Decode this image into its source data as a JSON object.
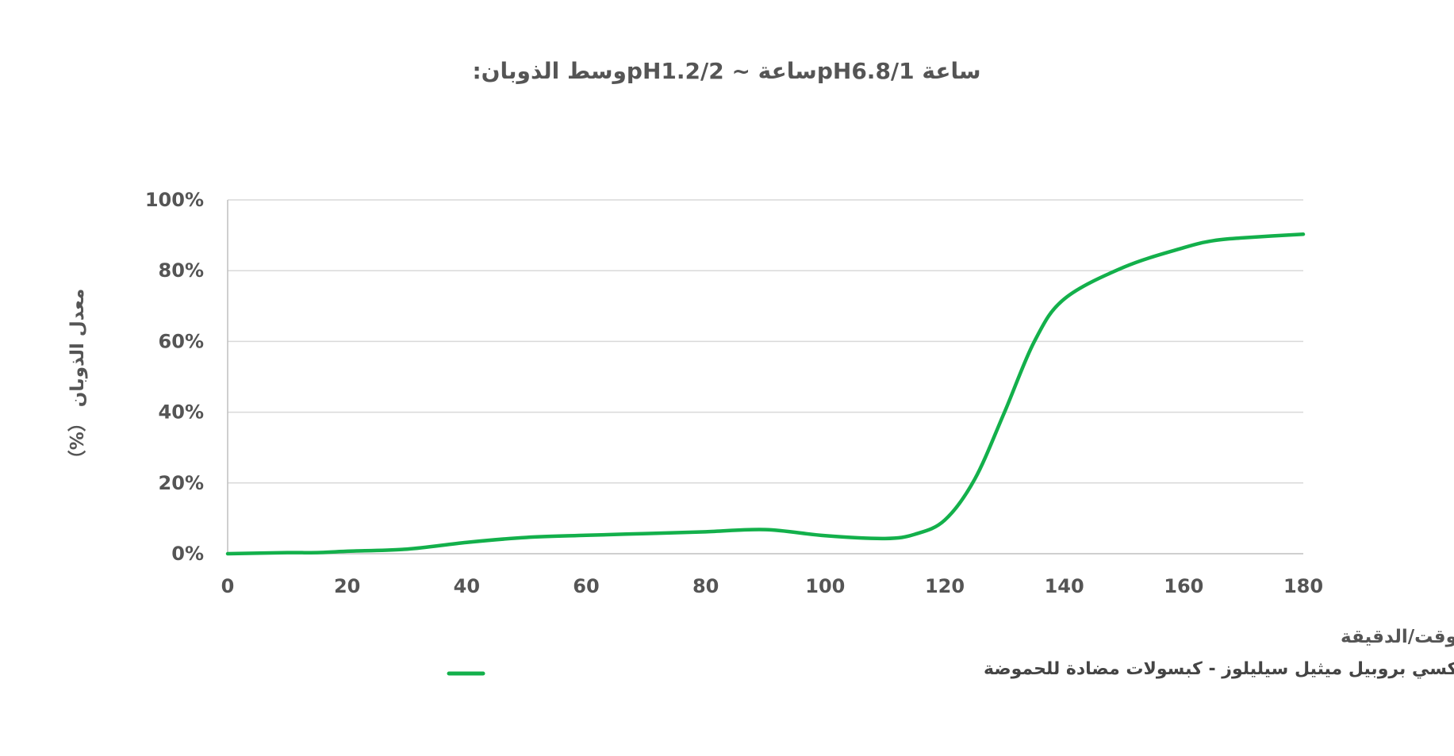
{
  "chart_data": {
    "type": "line",
    "title": "ساعة pH6.8/1ساعة ~ pH1.2/2وسط الذوبان:",
    "xlabel": "الوقت/الدقيقة",
    "ylabel": "معدل الذوبان （%）",
    "x_ticks": [
      "0",
      "20",
      "40",
      "60",
      "80",
      "100",
      "120",
      "140",
      "160",
      "180"
    ],
    "y_ticks": [
      "0%",
      "20%",
      "40%",
      "60%",
      "80%",
      "100%"
    ],
    "xlim": [
      0,
      180
    ],
    "ylim": [
      0,
      100
    ],
    "grid": true,
    "legend_position": "bottom",
    "series": [
      {
        "name": "هيدروكسي بروبيل ميثيل سيليلوز - كبسولات مضادة للحموضة",
        "color": "#13b04b",
        "x": [
          0,
          10,
          15,
          20,
          30,
          40,
          50,
          60,
          70,
          80,
          90,
          100,
          110,
          115,
          120,
          125,
          130,
          135,
          140,
          150,
          160,
          165,
          170,
          180
        ],
        "y": [
          0,
          0.3,
          0.3,
          0.7,
          1.3,
          3.2,
          4.6,
          5.2,
          5.7,
          6.2,
          6.8,
          5.1,
          4.3,
          5.5,
          9.5,
          21,
          40,
          60,
          72,
          81,
          86.5,
          88.5,
          89.3,
          90.3
        ]
      }
    ]
  }
}
